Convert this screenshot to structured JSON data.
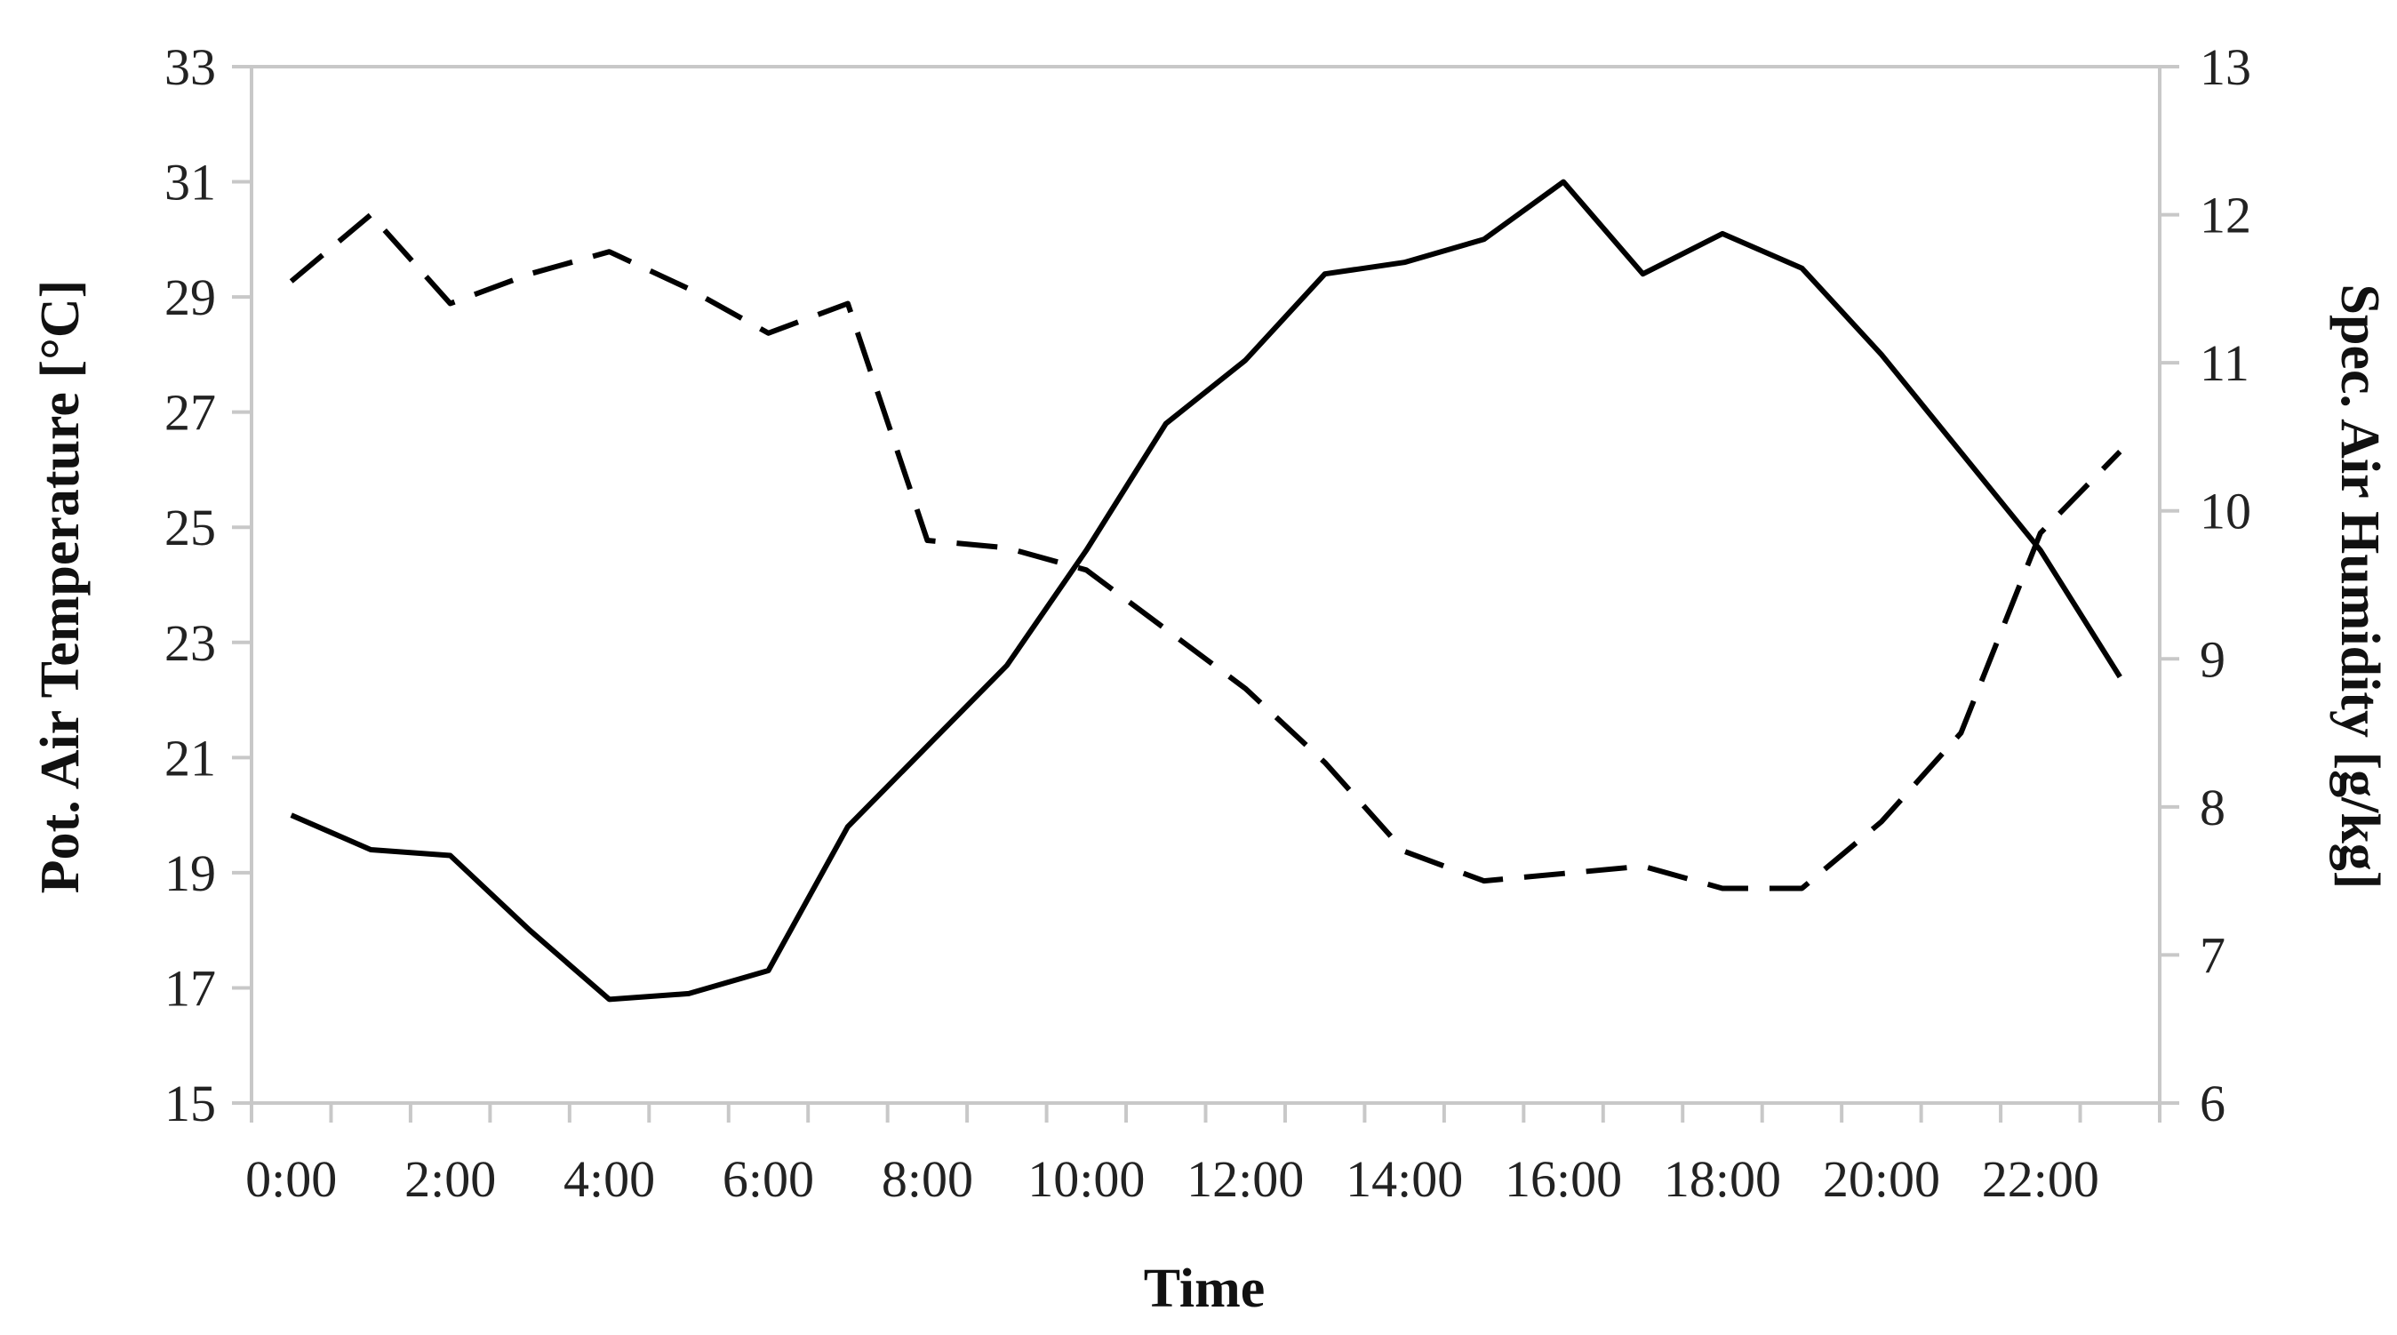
{
  "chart_data": {
    "type": "line",
    "xlabel": "Time",
    "ylabel_left": "Pot. Air Temperature [°C]",
    "ylabel_right": "Spec. Air Humidity [g/kg]",
    "x_tick_labels": [
      "0:00",
      "2:00",
      "4:00",
      "6:00",
      "8:00",
      "10:00",
      "12:00",
      "14:00",
      "16:00",
      "18:00",
      "20:00",
      "22:00"
    ],
    "y_left_ticks": [
      15,
      17,
      19,
      21,
      23,
      25,
      27,
      29,
      31,
      33
    ],
    "y_right_ticks": [
      6,
      7,
      8,
      9,
      10,
      11,
      12,
      13
    ],
    "y_left_lim": [
      15,
      33
    ],
    "y_right_lim": [
      6,
      13
    ],
    "x": [
      0,
      1,
      2,
      3,
      4,
      5,
      6,
      7,
      8,
      9,
      10,
      11,
      12,
      13,
      14,
      15,
      16,
      17,
      18,
      19,
      20,
      21,
      22,
      23
    ],
    "series": [
      {
        "style": "solid",
        "axis": "left",
        "values": [
          20.0,
          19.4,
          19.3,
          18.0,
          16.8,
          16.9,
          17.3,
          19.8,
          21.2,
          22.6,
          24.6,
          26.8,
          27.9,
          29.4,
          29.6,
          30.0,
          31.0,
          29.4,
          30.1,
          29.5,
          28.0,
          26.3,
          24.6,
          22.4
        ]
      },
      {
        "style": "dashed",
        "axis": "right",
        "values": [
          11.55,
          12.0,
          11.4,
          11.6,
          11.75,
          11.5,
          11.2,
          11.4,
          9.8,
          9.75,
          9.6,
          9.2,
          8.8,
          8.3,
          7.7,
          7.5,
          7.55,
          7.6,
          7.45,
          7.45,
          7.9,
          8.5,
          9.85,
          10.4
        ]
      }
    ],
    "grid": false,
    "legend": "none"
  }
}
